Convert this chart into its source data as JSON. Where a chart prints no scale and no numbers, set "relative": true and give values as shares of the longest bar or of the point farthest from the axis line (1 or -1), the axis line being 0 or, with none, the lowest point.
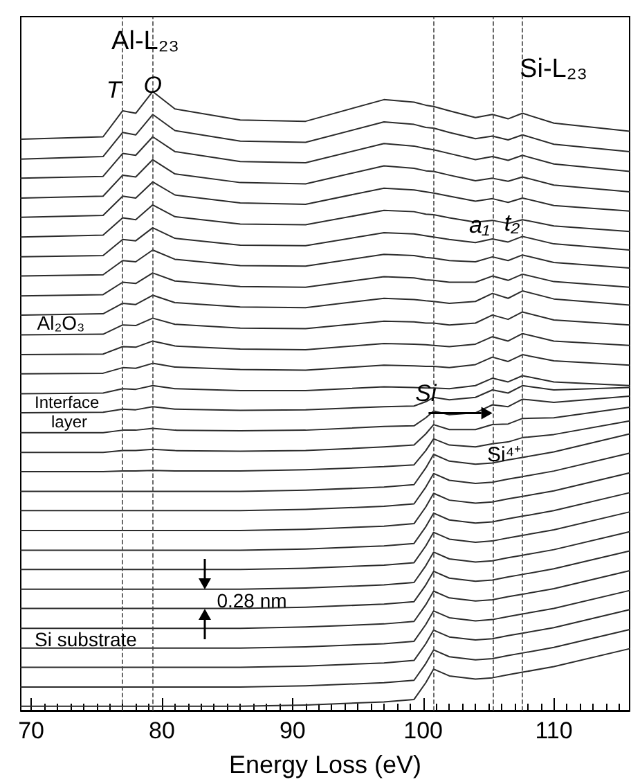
{
  "chart_data": {
    "type": "line",
    "relative": true,
    "xlabel": "Energy Loss (eV)",
    "xlim": [
      69.2,
      115.8
    ],
    "xticks": [
      70,
      {
        "value": 71,
        "label": null
      },
      {
        "value": 72,
        "label": null
      },
      {
        "value": 73,
        "label": null
      },
      {
        "value": 74,
        "label": null
      },
      {
        "value": 75,
        "label": null
      },
      {
        "value": 76,
        "label": null
      },
      {
        "value": 77,
        "label": null
      },
      {
        "value": 78,
        "label": null
      },
      {
        "value": 79,
        "label": null
      },
      80,
      {
        "value": 81,
        "label": null
      },
      {
        "value": 82,
        "label": null
      },
      {
        "value": 83,
        "label": null
      },
      {
        "value": 84,
        "label": null
      },
      {
        "value": 85,
        "label": null
      },
      {
        "value": 86,
        "label": null
      },
      {
        "value": 87,
        "label": null
      },
      {
        "value": 88,
        "label": null
      },
      {
        "value": 89,
        "label": null
      },
      90,
      {
        "value": 91,
        "label": null
      },
      {
        "value": 92,
        "label": null
      },
      {
        "value": 93,
        "label": null
      },
      {
        "value": 94,
        "label": null
      },
      {
        "value": 95,
        "label": null
      },
      {
        "value": 96,
        "label": null
      },
      {
        "value": 97,
        "label": null
      },
      {
        "value": 98,
        "label": null
      },
      {
        "value": 99,
        "label": null
      },
      100,
      {
        "value": 101,
        "label": null
      },
      {
        "value": 102,
        "label": null
      },
      {
        "value": 103,
        "label": null
      },
      {
        "value": 104,
        "label": null
      },
      {
        "value": 105,
        "label": null
      },
      {
        "value": 106,
        "label": null
      },
      {
        "value": 107,
        "label": null
      },
      {
        "value": 108,
        "label": null
      },
      {
        "value": 109,
        "label": null
      },
      110,
      {
        "value": 111,
        "label": null
      },
      {
        "value": 112,
        "label": null
      },
      {
        "value": 113,
        "label": null
      },
      {
        "value": 114,
        "label": null
      },
      {
        "value": 115,
        "label": null
      }
    ],
    "x": [
      69.2,
      75.5,
      77,
      78,
      79.3,
      81,
      86,
      91,
      97,
      99.3,
      100.2,
      100.8,
      102,
      104,
      105.3,
      106.5,
      107.6,
      110,
      115.8
    ],
    "series": [
      {
        "color": "#2b2b2b",
        "values": [
          0.923,
          0.927,
          0.969,
          0.965,
          1.0,
          0.972,
          0.954,
          0.952,
          0.987,
          0.983,
          0.978,
          0.976,
          0.969,
          0.958,
          0.963,
          0.956,
          0.965,
          0.949,
          0.936
        ]
      },
      {
        "color": "#2b2b2b",
        "values": [
          0.891,
          0.895,
          0.934,
          0.93,
          0.963,
          0.937,
          0.92,
          0.918,
          0.951,
          0.947,
          0.942,
          0.941,
          0.934,
          0.924,
          0.928,
          0.922,
          0.93,
          0.915,
          0.903
        ]
      },
      {
        "color": "#2b2b2b",
        "values": [
          0.86,
          0.863,
          0.9,
          0.897,
          0.927,
          0.903,
          0.887,
          0.885,
          0.916,
          0.912,
          0.908,
          0.906,
          0.9,
          0.89,
          0.895,
          0.889,
          0.897,
          0.883,
          0.871
        ]
      },
      {
        "color": "#2b2b2b",
        "values": [
          0.828,
          0.831,
          0.865,
          0.862,
          0.89,
          0.867,
          0.853,
          0.851,
          0.88,
          0.876,
          0.872,
          0.871,
          0.865,
          0.856,
          0.86,
          0.855,
          0.862,
          0.849,
          0.838
        ]
      },
      {
        "color": "#2b2b2b",
        "values": [
          0.797,
          0.8,
          0.831,
          0.828,
          0.854,
          0.833,
          0.82,
          0.818,
          0.844,
          0.841,
          0.838,
          0.836,
          0.831,
          0.823,
          0.827,
          0.821,
          0.828,
          0.816,
          0.807
        ]
      },
      {
        "color": "#2b2b2b",
        "values": [
          0.765,
          0.768,
          0.796,
          0.793,
          0.817,
          0.798,
          0.786,
          0.785,
          0.808,
          0.806,
          0.802,
          0.801,
          0.796,
          0.789,
          0.792,
          0.787,
          0.793,
          0.783,
          0.774
        ]
      },
      {
        "color": "#2b2b2b",
        "values": [
          0.733,
          0.735,
          0.761,
          0.759,
          0.78,
          0.763,
          0.752,
          0.751,
          0.772,
          0.77,
          0.767,
          0.765,
          0.761,
          0.756,
          0.762,
          0.757,
          0.766,
          0.754,
          0.744
        ]
      },
      {
        "color": "#2b2b2b",
        "values": [
          0.702,
          0.704,
          0.727,
          0.725,
          0.744,
          0.729,
          0.719,
          0.718,
          0.737,
          0.735,
          0.732,
          0.731,
          0.727,
          0.725,
          0.733,
          0.727,
          0.736,
          0.724,
          0.715
        ]
      },
      {
        "color": "#2b2b2b",
        "values": [
          0.67,
          0.672,
          0.692,
          0.69,
          0.707,
          0.694,
          0.685,
          0.684,
          0.701,
          0.699,
          0.696,
          0.695,
          0.692,
          0.692,
          0.702,
          0.695,
          0.705,
          0.693,
          0.684
        ]
      },
      {
        "color": "#2b2b2b",
        "values": [
          0.639,
          0.641,
          0.658,
          0.656,
          0.671,
          0.659,
          0.652,
          0.651,
          0.666,
          0.664,
          0.662,
          0.661,
          0.658,
          0.661,
          0.674,
          0.666,
          0.678,
          0.665,
          0.655
        ]
      },
      {
        "color": "#2b2b2b",
        "values": [
          0.607,
          0.608,
          0.623,
          0.622,
          0.634,
          0.624,
          0.618,
          0.617,
          0.629,
          0.628,
          0.626,
          0.626,
          0.623,
          0.626,
          0.639,
          0.632,
          0.644,
          0.631,
          0.623
        ]
      },
      {
        "color": "#2b2b2b",
        "values": [
          0.575,
          0.576,
          0.588,
          0.587,
          0.597,
          0.589,
          0.584,
          0.583,
          0.593,
          0.592,
          0.591,
          0.59,
          0.588,
          0.592,
          0.604,
          0.597,
          0.609,
          0.597,
          0.59
        ]
      },
      {
        "color": "#2b2b2b",
        "values": [
          0.544,
          0.545,
          0.554,
          0.553,
          0.561,
          0.555,
          0.551,
          0.55,
          0.558,
          0.557,
          0.556,
          0.556,
          0.554,
          0.559,
          0.571,
          0.564,
          0.575,
          0.565,
          0.558
        ]
      },
      {
        "color": "#2b2b2b",
        "values": [
          0.512,
          0.513,
          0.52,
          0.519,
          0.525,
          0.52,
          0.517,
          0.517,
          0.523,
          0.522,
          0.521,
          0.521,
          0.52,
          0.525,
          0.537,
          0.531,
          0.541,
          0.531,
          0.525
        ]
      },
      {
        "color": "#2b2b2b",
        "values": [
          0.481,
          0.482,
          0.487,
          0.486,
          0.491,
          0.487,
          0.485,
          0.486,
          0.491,
          0.492,
          0.499,
          0.506,
          0.502,
          0.506,
          0.518,
          0.513,
          0.525,
          0.518,
          0.522
        ]
      },
      {
        "color": "#2b2b2b",
        "values": [
          0.449,
          0.449,
          0.453,
          0.453,
          0.456,
          0.453,
          0.452,
          0.453,
          0.459,
          0.46,
          0.473,
          0.484,
          0.478,
          0.481,
          0.494,
          0.491,
          0.503,
          0.498,
          0.508
        ]
      },
      {
        "color": "#2b2b2b",
        "values": [
          0.417,
          0.417,
          0.42,
          0.42,
          0.422,
          0.42,
          0.419,
          0.42,
          0.426,
          0.429,
          0.447,
          0.462,
          0.454,
          0.454,
          0.462,
          0.463,
          0.472,
          0.473,
          0.49
        ]
      },
      {
        "color": "#2b2b2b",
        "values": [
          0.386,
          0.386,
          0.387,
          0.387,
          0.388,
          0.387,
          0.387,
          0.389,
          0.394,
          0.397,
          0.42,
          0.439,
          0.429,
          0.426,
          0.431,
          0.434,
          0.441,
          0.446,
          0.468
        ]
      },
      {
        "color": "#2b2b2b",
        "values": [
          0.354,
          0.354,
          0.354,
          0.354,
          0.354,
          0.354,
          0.354,
          0.356,
          0.361,
          0.365,
          0.392,
          0.414,
          0.403,
          0.398,
          0.4,
          0.405,
          0.409,
          0.418,
          0.447
        ]
      },
      {
        "color": "#2b2b2b",
        "values": [
          0.323,
          0.323,
          0.323,
          0.323,
          0.323,
          0.323,
          0.323,
          0.325,
          0.33,
          0.334,
          0.361,
          0.383,
          0.372,
          0.367,
          0.369,
          0.374,
          0.378,
          0.387,
          0.416
        ]
      },
      {
        "color": "#2b2b2b",
        "values": [
          0.291,
          0.291,
          0.291,
          0.291,
          0.291,
          0.291,
          0.291,
          0.293,
          0.298,
          0.302,
          0.329,
          0.351,
          0.34,
          0.335,
          0.337,
          0.342,
          0.346,
          0.355,
          0.384
        ]
      },
      {
        "color": "#2b2b2b",
        "values": [
          0.259,
          0.259,
          0.259,
          0.259,
          0.259,
          0.259,
          0.259,
          0.261,
          0.266,
          0.27,
          0.297,
          0.319,
          0.308,
          0.303,
          0.305,
          0.31,
          0.314,
          0.323,
          0.352
        ]
      },
      {
        "color": "#2b2b2b",
        "values": [
          0.228,
          0.228,
          0.228,
          0.228,
          0.228,
          0.228,
          0.228,
          0.23,
          0.235,
          0.239,
          0.266,
          0.288,
          0.277,
          0.272,
          0.274,
          0.279,
          0.283,
          0.292,
          0.321
        ]
      },
      {
        "color": "#2b2b2b",
        "values": [
          0.196,
          0.196,
          0.196,
          0.196,
          0.196,
          0.196,
          0.196,
          0.198,
          0.203,
          0.207,
          0.234,
          0.256,
          0.245,
          0.24,
          0.242,
          0.247,
          0.251,
          0.26,
          0.289
        ]
      },
      {
        "color": "#2b2b2b",
        "values": [
          0.165,
          0.165,
          0.165,
          0.165,
          0.165,
          0.165,
          0.165,
          0.167,
          0.172,
          0.176,
          0.203,
          0.225,
          0.214,
          0.209,
          0.211,
          0.216,
          0.22,
          0.229,
          0.258
        ]
      },
      {
        "color": "#2b2b2b",
        "values": [
          0.133,
          0.133,
          0.133,
          0.133,
          0.133,
          0.133,
          0.133,
          0.135,
          0.14,
          0.144,
          0.171,
          0.193,
          0.182,
          0.177,
          0.179,
          0.184,
          0.188,
          0.197,
          0.226
        ]
      },
      {
        "color": "#2b2b2b",
        "values": [
          0.101,
          0.101,
          0.101,
          0.101,
          0.101,
          0.101,
          0.101,
          0.103,
          0.108,
          0.112,
          0.139,
          0.161,
          0.15,
          0.145,
          0.147,
          0.152,
          0.156,
          0.165,
          0.194
        ]
      },
      {
        "color": "#2b2b2b",
        "values": [
          0.07,
          0.07,
          0.07,
          0.07,
          0.07,
          0.07,
          0.07,
          0.072,
          0.077,
          0.081,
          0.108,
          0.13,
          0.119,
          0.114,
          0.116,
          0.121,
          0.125,
          0.134,
          0.163
        ]
      },
      {
        "color": "#2b2b2b",
        "values": [
          0.038,
          0.038,
          0.038,
          0.038,
          0.038,
          0.038,
          0.038,
          0.04,
          0.045,
          0.049,
          0.076,
          0.098,
          0.087,
          0.082,
          0.084,
          0.089,
          0.093,
          0.102,
          0.131
        ]
      },
      {
        "color": "#2b2b2b",
        "values": [
          0.007,
          0.007,
          0.007,
          0.007,
          0.007,
          0.007,
          0.007,
          0.009,
          0.014,
          0.018,
          0.045,
          0.067,
          0.056,
          0.051,
          0.053,
          0.058,
          0.062,
          0.071,
          0.1
        ]
      }
    ],
    "ref_lines": [
      {
        "axis": "x",
        "value": 77,
        "line_style": "dashed",
        "color": "#444444"
      },
      {
        "axis": "x",
        "value": 79.3,
        "line_style": "dashed",
        "color": "#444444"
      },
      {
        "axis": "x",
        "value": 100.8,
        "line_style": "dashed",
        "color": "#444444"
      },
      {
        "axis": "x",
        "value": 105.3,
        "line_style": "dashed",
        "color": "#444444"
      },
      {
        "axis": "x",
        "value": 107.6,
        "line_style": "dashed",
        "color": "#444444"
      }
    ],
    "annotations": [
      "Al-L₂₃",
      "Si-L₂₃",
      "T",
      {
        "text": "O",
        "x": 79.3,
        "y": 1.01
      },
      {
        "text": "a₁",
        "x": 104.3,
        "y": 0.784
      },
      {
        "text": "t₂",
        "x": 106.8,
        "y": 0.788
      },
      "Al₂O₃",
      {
        "text": "Si",
        "x": 100.2,
        "y": 0.512
      },
      {
        "text": "Si⁴⁺",
        "x": 106.2,
        "y": 0.413
      },
      "Interface layer",
      "0.28 nm",
      "Si substrate"
    ]
  }
}
